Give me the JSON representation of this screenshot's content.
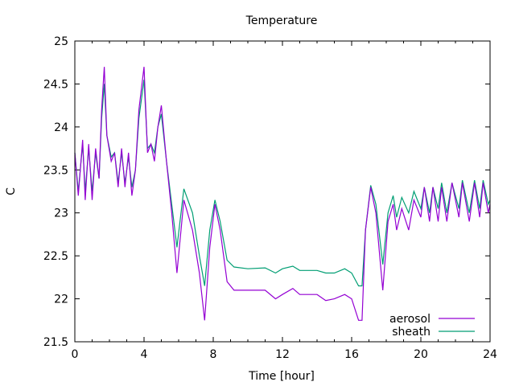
{
  "chart_data": {
    "type": "line",
    "title": "Temperature",
    "xlabel": "Time [hour]",
    "ylabel": "C",
    "xlim": [
      0,
      24
    ],
    "ylim": [
      21.5,
      25
    ],
    "xticks": [
      0,
      4,
      8,
      12,
      16,
      20,
      24
    ],
    "yticks": [
      21.5,
      22,
      22.5,
      23,
      23.5,
      24,
      24.5,
      25
    ],
    "ytick_labels": [
      "21.5",
      "22",
      "22.5",
      "23",
      "23.5",
      "24",
      "24.5",
      "25"
    ],
    "legend_position": "bottom-right",
    "grid": false,
    "x": [
      0,
      0.2,
      0.45,
      0.6,
      0.8,
      1.0,
      1.2,
      1.4,
      1.55,
      1.7,
      1.85,
      2.1,
      2.3,
      2.5,
      2.7,
      2.9,
      3.1,
      3.3,
      3.5,
      3.7,
      4.0,
      4.2,
      4.4,
      4.6,
      4.8,
      5.0,
      5.3,
      5.6,
      5.9,
      6.3,
      6.8,
      7.2,
      7.5,
      7.8,
      8.1,
      8.4,
      8.8,
      9.2,
      10,
      11,
      11.6,
      12,
      12.6,
      13,
      14,
      14.5,
      15,
      15.6,
      16,
      16.4,
      16.6,
      16.8,
      17.1,
      17.4,
      17.8,
      18.1,
      18.4,
      18.6,
      18.9,
      19.3,
      19.6,
      20.0,
      20.2,
      20.5,
      20.7,
      21.0,
      21.2,
      21.5,
      21.8,
      22.2,
      22.4,
      22.8,
      23.1,
      23.4,
      23.6,
      23.9,
      24
    ],
    "series": [
      {
        "name": "aerosol",
        "color": "#9400d3",
        "values": [
          23.7,
          23.2,
          23.85,
          23.15,
          23.8,
          23.15,
          23.75,
          23.4,
          24.2,
          24.7,
          23.9,
          23.6,
          23.7,
          23.3,
          23.75,
          23.3,
          23.7,
          23.2,
          23.5,
          24.2,
          24.7,
          23.7,
          23.8,
          23.6,
          24.0,
          24.25,
          23.6,
          23.0,
          22.3,
          23.15,
          22.8,
          22.3,
          21.75,
          22.6,
          23.1,
          22.8,
          22.2,
          22.1,
          22.1,
          22.1,
          22.0,
          22.05,
          22.12,
          22.05,
          22.05,
          21.98,
          22.0,
          22.05,
          22.0,
          21.75,
          21.75,
          22.8,
          23.3,
          23.0,
          22.1,
          22.9,
          23.1,
          22.8,
          23.05,
          22.8,
          23.15,
          22.95,
          23.3,
          22.9,
          23.3,
          22.9,
          23.3,
          22.9,
          23.35,
          22.95,
          23.35,
          22.9,
          23.35,
          22.95,
          23.35,
          23.0,
          23.1
        ]
      },
      {
        "name": "sheath",
        "color": "#009e73",
        "values": [
          23.7,
          23.25,
          23.8,
          23.25,
          23.75,
          23.25,
          23.7,
          23.4,
          24.1,
          24.5,
          23.9,
          23.65,
          23.7,
          23.35,
          23.7,
          23.35,
          23.65,
          23.3,
          23.5,
          24.1,
          24.55,
          23.75,
          23.8,
          23.7,
          24.0,
          24.15,
          23.6,
          23.1,
          22.6,
          23.28,
          23.0,
          22.5,
          22.15,
          22.8,
          23.15,
          22.9,
          22.45,
          22.37,
          22.35,
          22.36,
          22.3,
          22.35,
          22.38,
          22.33,
          22.33,
          22.3,
          22.3,
          22.35,
          22.3,
          22.15,
          22.15,
          22.8,
          23.32,
          23.1,
          22.4,
          23.0,
          23.2,
          22.95,
          23.18,
          23.0,
          23.25,
          23.05,
          23.3,
          23.0,
          23.3,
          23.05,
          23.35,
          23.0,
          23.35,
          23.05,
          23.38,
          23.0,
          23.38,
          23.05,
          23.38,
          23.1,
          23.15
        ]
      }
    ]
  }
}
